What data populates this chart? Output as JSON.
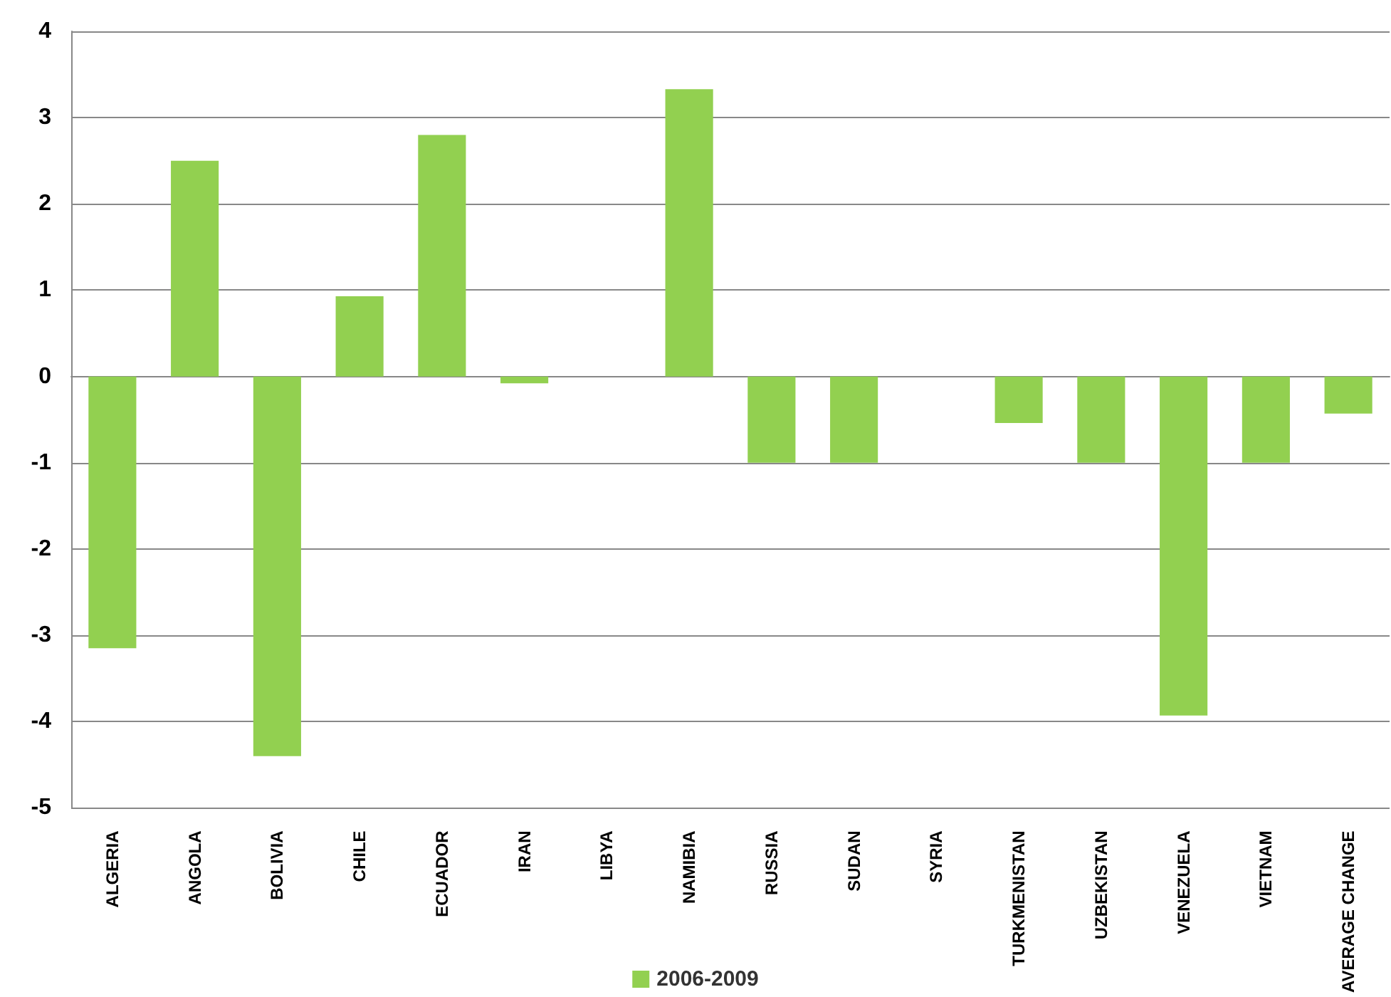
{
  "chart_data": {
    "type": "bar",
    "categories": [
      "ALGERIA",
      "ANGOLA",
      "BOLIVIA",
      "CHILE",
      "ECUADOR",
      "IRAN",
      "LIBYA",
      "NAMIBIA",
      "RUSSIA",
      "SUDAN",
      "SYRIA",
      "TURKMENISTAN",
      "UZBEKISTAN",
      "VENEZUELA",
      "VIETNAM",
      "AVERAGE CHANGE"
    ],
    "series": [
      {
        "name": "2006-2009",
        "color": "#92d050",
        "values": [
          -3.15,
          2.5,
          -4.4,
          0.93,
          2.8,
          -0.08,
          0,
          3.33,
          -1,
          -1,
          0,
          -0.54,
          -1,
          -3.93,
          -1,
          -0.43
        ]
      }
    ],
    "ylim": [
      -5,
      4
    ],
    "yticks": [
      -5,
      -4,
      -3,
      -2,
      -1,
      0,
      1,
      2,
      3,
      4
    ],
    "grid": "y",
    "legend": "bottom"
  }
}
